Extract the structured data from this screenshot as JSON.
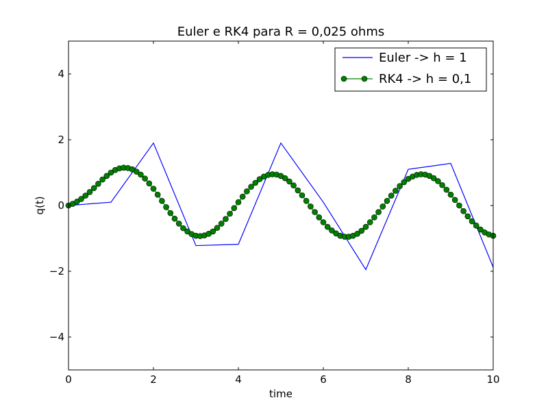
{
  "chart_data": {
    "type": "line",
    "title": "Euler e RK4 para R = 0,025 ohms",
    "xlabel": "time",
    "ylabel": "q(t)",
    "xlim": [
      0,
      10
    ],
    "ylim": [
      -5,
      5
    ],
    "xticks": [
      0,
      2,
      4,
      6,
      8,
      10
    ],
    "yticks": [
      -4,
      -2,
      0,
      2,
      4
    ],
    "xtick_labels": [
      "0",
      "2",
      "4",
      "6",
      "8",
      "10"
    ],
    "ytick_labels": [
      "−4",
      "−2",
      "0",
      "2",
      "4"
    ],
    "grid": false,
    "legend_position": "top-right",
    "series": [
      {
        "name": "Euler -> h = 1",
        "color": "#0000ff",
        "marker": "none",
        "x": [
          0,
          1,
          2,
          3,
          4,
          5,
          6,
          7,
          8,
          9,
          10
        ],
        "values": [
          0,
          0.1,
          1.9,
          -1.22,
          -1.18,
          1.9,
          0.1,
          -1.95,
          1.1,
          1.28,
          -1.88
        ]
      },
      {
        "name": "RK4 -> h = 0,1",
        "color": "#008000",
        "marker": "circle",
        "x": [
          0,
          0.1,
          0.2,
          0.3,
          0.4,
          0.5,
          0.6,
          0.7,
          0.8,
          0.9,
          1.0,
          1.1,
          1.2,
          1.3,
          1.4,
          1.5,
          1.6,
          1.7,
          1.8,
          1.9,
          2.0,
          2.1,
          2.2,
          2.3,
          2.4,
          2.5,
          2.6,
          2.7,
          2.8,
          2.9,
          3.0,
          3.1,
          3.2,
          3.3,
          3.4,
          3.5,
          3.6,
          3.7,
          3.8,
          3.9,
          4.0,
          4.1,
          4.2,
          4.3,
          4.4,
          4.5,
          4.6,
          4.7,
          4.8,
          4.9,
          5.0,
          5.1,
          5.2,
          5.3,
          5.4,
          5.5,
          5.6,
          5.7,
          5.8,
          5.9,
          6.0,
          6.1,
          6.2,
          6.3,
          6.4,
          6.5,
          6.6,
          6.7,
          6.8,
          6.9,
          7.0,
          7.1,
          7.2,
          7.3,
          7.4,
          7.5,
          7.6,
          7.7,
          7.8,
          7.9,
          8.0,
          8.1,
          8.2,
          8.3,
          8.4,
          8.5,
          8.6,
          8.7,
          8.8,
          8.9,
          9.0,
          9.1,
          9.2,
          9.3,
          9.4,
          9.5,
          9.6,
          9.7,
          9.8,
          9.9,
          10.0
        ],
        "values": [
          0.0,
          0.05,
          0.12,
          0.2,
          0.3,
          0.41,
          0.53,
          0.66,
          0.79,
          0.9,
          1.0,
          1.08,
          1.13,
          1.15,
          1.14,
          1.1,
          1.03,
          0.94,
          0.82,
          0.67,
          0.51,
          0.33,
          0.14,
          -0.05,
          -0.23,
          -0.4,
          -0.55,
          -0.69,
          -0.79,
          -0.87,
          -0.92,
          -0.93,
          -0.91,
          -0.86,
          -0.79,
          -0.68,
          -0.55,
          -0.41,
          -0.25,
          -0.08,
          0.1,
          0.27,
          0.43,
          0.57,
          0.69,
          0.8,
          0.88,
          0.93,
          0.95,
          0.94,
          0.9,
          0.83,
          0.73,
          0.61,
          0.46,
          0.31,
          0.14,
          -0.03,
          -0.2,
          -0.36,
          -0.51,
          -0.65,
          -0.76,
          -0.85,
          -0.92,
          -0.95,
          -0.95,
          -0.92,
          -0.86,
          -0.77,
          -0.65,
          -0.51,
          -0.36,
          -0.2,
          -0.03,
          0.14,
          0.3,
          0.45,
          0.59,
          0.71,
          0.81,
          0.88,
          0.93,
          0.95,
          0.94,
          0.9,
          0.83,
          0.74,
          0.62,
          0.48,
          0.33,
          0.17,
          0.0,
          -0.17,
          -0.33,
          -0.48,
          -0.61,
          -0.73,
          -0.82,
          -0.88,
          -0.92
        ]
      }
    ]
  }
}
